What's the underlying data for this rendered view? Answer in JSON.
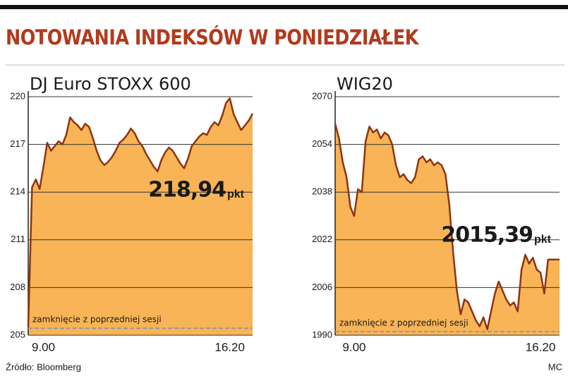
{
  "title": "NOTOWANIA INDEKSÓW W PONIEDZIAŁEK",
  "source": "Źródło: Bloomberg",
  "credit": "MC",
  "chart_data": [
    {
      "type": "area",
      "title": "DJ Euro STOXX 600",
      "categories": [
        null,
        null,
        null,
        null,
        "9.00",
        null,
        null,
        null,
        null,
        null,
        null,
        null,
        null,
        null,
        null,
        null,
        null,
        null,
        null,
        null,
        null,
        null,
        null,
        null,
        null,
        null,
        null,
        null,
        null,
        null,
        null,
        null,
        null,
        null,
        null,
        null,
        null,
        null,
        null,
        null,
        null,
        null,
        null,
        null,
        null,
        null,
        null,
        null,
        null,
        null,
        null,
        null,
        null,
        "16.20",
        null,
        null,
        null,
        null,
        null,
        null
      ],
      "values": [
        205.5,
        214.3,
        214.8,
        214.2,
        215.6,
        217.1,
        216.6,
        216.9,
        217.2,
        217.0,
        217.6,
        218.7,
        218.4,
        218.2,
        217.9,
        218.3,
        218.1,
        217.4,
        216.6,
        216.0,
        215.7,
        215.9,
        216.2,
        216.6,
        217.1,
        217.3,
        217.6,
        218.0,
        217.7,
        217.2,
        216.9,
        216.4,
        216.0,
        215.6,
        215.3,
        216.0,
        216.5,
        216.8,
        216.6,
        216.2,
        215.8,
        215.5,
        216.1,
        216.9,
        217.2,
        217.5,
        217.7,
        217.6,
        218.1,
        218.4,
        218.2,
        218.8,
        219.6,
        219.9,
        218.9,
        218.4,
        217.9,
        218.2,
        218.5,
        218.94
      ],
      "value_labels": [
        null,
        null,
        null,
        null,
        null,
        null,
        null,
        null,
        null,
        null,
        null,
        null,
        null,
        null,
        null,
        null,
        null,
        null,
        null,
        null,
        null,
        null,
        null,
        null,
        null,
        null,
        null,
        null,
        null,
        null,
        null,
        null,
        null,
        null,
        null,
        null,
        null,
        null,
        null,
        null,
        null,
        null,
        null,
        null,
        null,
        null,
        null,
        null,
        null,
        null,
        null,
        null,
        null,
        null,
        null,
        null,
        null,
        null,
        null,
        "218,94"
      ],
      "value_unit": "pkt",
      "color": "#8e3410",
      "fill_color": "#f8b456",
      "ylim": [
        205,
        220
      ],
      "yticks": [
        205,
        208,
        211,
        214,
        217,
        220
      ],
      "grid": true,
      "reference": {
        "value": 205.44,
        "label": "zamknięcie z poprzedniej sesji"
      }
    },
    {
      "type": "area",
      "title": "WIG20",
      "categories": [
        null,
        null,
        null,
        null,
        null,
        "9.00",
        null,
        null,
        null,
        null,
        null,
        null,
        null,
        null,
        null,
        null,
        null,
        null,
        null,
        null,
        null,
        null,
        null,
        null,
        null,
        null,
        null,
        null,
        null,
        null,
        null,
        null,
        null,
        null,
        null,
        null,
        null,
        null,
        null,
        null,
        null,
        null,
        null,
        null,
        null,
        null,
        null,
        null,
        null,
        null,
        null,
        null,
        null,
        null,
        "16.20",
        null,
        null,
        null,
        null,
        null
      ],
      "values": [
        2061,
        2056,
        2048,
        2043,
        2033,
        2030,
        2039,
        2038,
        2055,
        2060,
        2058,
        2059,
        2056,
        2058,
        2057,
        2054,
        2047,
        2043,
        2044,
        2042,
        2041,
        2043,
        2049,
        2050,
        2048,
        2049,
        2047,
        2048,
        2047,
        2044,
        2034,
        2018,
        2005,
        1997,
        2002,
        2001,
        1998,
        1995,
        1993,
        1996,
        1992,
        1998,
        2004,
        2008,
        2005,
        2002,
        2000,
        2001,
        1998,
        2012,
        2017,
        2014,
        2016,
        2012,
        2011,
        2004,
        2015.39,
        2015.39,
        2015.39,
        2015.39
      ],
      "value_labels": [
        null,
        null,
        null,
        null,
        null,
        null,
        null,
        null,
        null,
        null,
        null,
        null,
        null,
        null,
        null,
        null,
        null,
        null,
        null,
        null,
        null,
        null,
        null,
        null,
        null,
        null,
        null,
        null,
        null,
        null,
        null,
        null,
        null,
        null,
        null,
        null,
        null,
        null,
        null,
        null,
        null,
        null,
        null,
        null,
        null,
        null,
        null,
        null,
        null,
        null,
        null,
        null,
        null,
        null,
        null,
        null,
        null,
        null,
        null,
        "2015,39"
      ],
      "value_unit": "pkt",
      "color": "#8e3410",
      "fill_color": "#f8b456",
      "ylim": [
        1990,
        2070
      ],
      "yticks": [
        1990,
        2006,
        2022,
        2038,
        2054,
        2070
      ],
      "grid": true,
      "reference": {
        "value": 1991.2,
        "label": "zamknięcie z poprzedniej sesji"
      }
    }
  ]
}
